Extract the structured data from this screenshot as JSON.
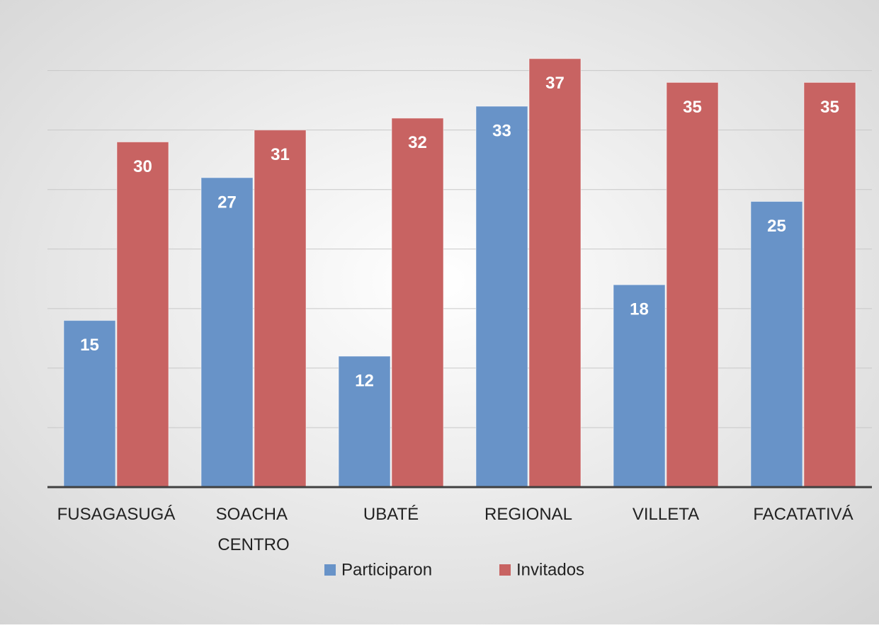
{
  "chart_data": {
    "type": "bar",
    "categories": [
      "FUSAGASUGÁ",
      "SOACHA CENTRO",
      "UBATÉ",
      "REGIONAL",
      "VILLETA",
      "FACATATIVÁ"
    ],
    "series": [
      {
        "name": "Participaron",
        "color": "#6893c8",
        "values": [
          15,
          27,
          12,
          33,
          18,
          25
        ]
      },
      {
        "name": "Invitados",
        "color": "#c86362",
        "values": [
          30,
          31,
          32,
          37,
          35,
          35
        ]
      }
    ],
    "ylim": [
      1,
      38
    ],
    "yticks": [
      1,
      6,
      11,
      16,
      21,
      26,
      31,
      36
    ],
    "grid": true,
    "legend": "bottom"
  }
}
